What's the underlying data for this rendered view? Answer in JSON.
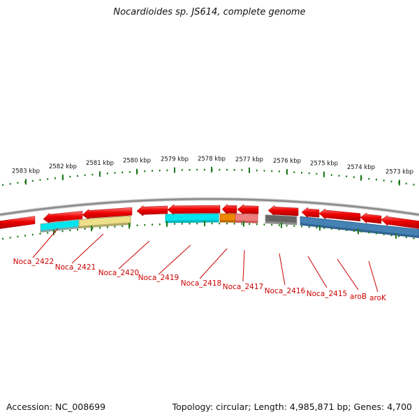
{
  "title": "Nocardioides sp. JS614, complete genome",
  "accession": "Accession: NC_008699",
  "summary": "Topology: circular; Length: 4,985,871 bp; Genes: 4,700",
  "ruler_labels": [
    "2583 kbp",
    "2582 kbp",
    "2581 kbp",
    "2580 kbp",
    "2579 kbp",
    "2578 kbp",
    "2577 kbp",
    "2576 kbp",
    "2575 kbp",
    "2574 kbp",
    "2573 kbp"
  ],
  "gene_labels": [
    "Noca_2422",
    "Noca_2421",
    "Noca_2420",
    "Noca_2419",
    "Noca_2418",
    "Noca_2417",
    "Noca_2416",
    "Noca_2415",
    "aroB",
    "aroK"
  ],
  "colors": {
    "gene": "#ee0000",
    "backbone": "#8a8a8a",
    "tick": "#1a7a1a",
    "label": "#cc0000",
    "feature_cyan": "#00e5ee",
    "feature_yellow": "#eee08a",
    "feature_orange": "#ee8800",
    "feature_pink": "#f08080",
    "feature_gray": "#666666",
    "feature_blue": "#4682b4"
  }
}
